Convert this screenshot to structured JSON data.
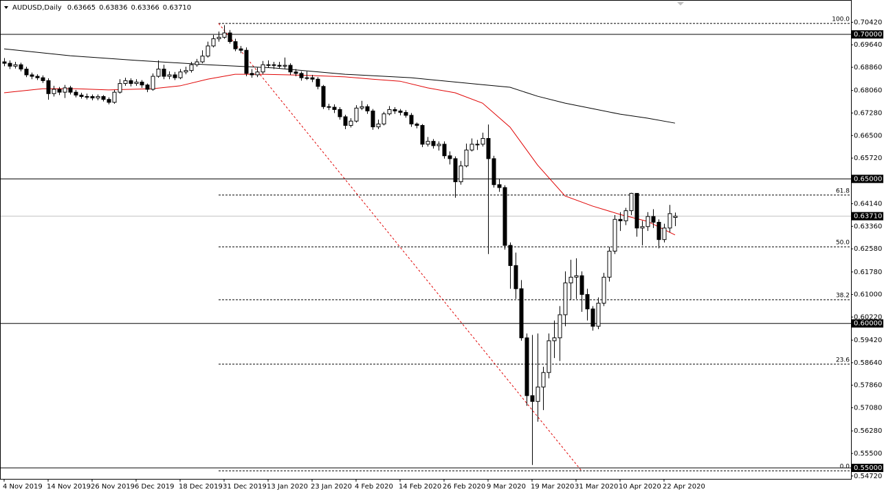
{
  "chart_data": {
    "type": "candlestick",
    "header": {
      "symbol": "AUDUSD,Daily",
      "ohlc": [
        "0.63665",
        "0.63836",
        "0.63366",
        "0.63710"
      ]
    },
    "categories": [
      "4 Nov 2019",
      null,
      null,
      null,
      null,
      null,
      null,
      null,
      "14 Nov 2019",
      null,
      null,
      null,
      null,
      null,
      null,
      null,
      "26 Nov 2019",
      null,
      null,
      null,
      null,
      null,
      null,
      null,
      "6 Dec 2019",
      null,
      null,
      null,
      null,
      null,
      null,
      null,
      "18 Dec 2019",
      null,
      null,
      null,
      null,
      null,
      null,
      null,
      "31 Dec 2019",
      null,
      null,
      null,
      null,
      null,
      null,
      null,
      "13 Jan 2020",
      null,
      null,
      null,
      null,
      null,
      null,
      null,
      "23 Jan 2020",
      null,
      null,
      null,
      null,
      null,
      null,
      null,
      "4 Feb 2020",
      null,
      null,
      null,
      null,
      null,
      null,
      null,
      "14 Feb 2020",
      null,
      null,
      null,
      null,
      null,
      null,
      null,
      "26 Feb 2020",
      null,
      null,
      null,
      null,
      null,
      null,
      null,
      "9 Mar 2020",
      null,
      null,
      null,
      null,
      null,
      null,
      null,
      "19 Mar 2020",
      null,
      null,
      null,
      null,
      null,
      null,
      null,
      "31 Mar 2020",
      null,
      null,
      null,
      null,
      null,
      null,
      null,
      "10 Apr 2020",
      null,
      null,
      null,
      null,
      null,
      null,
      null,
      "22 Apr 2020",
      null,
      null
    ],
    "open": [
      0.6905,
      0.69,
      0.689,
      0.6895,
      0.688,
      0.686,
      0.6855,
      0.685,
      0.684,
      0.6795,
      0.681,
      0.68,
      0.6815,
      0.68,
      0.679,
      0.6785,
      0.6785,
      0.678,
      0.6785,
      0.6775,
      0.6765,
      0.68,
      0.683,
      0.684,
      0.683,
      0.6835,
      0.6825,
      0.681,
      0.6855,
      0.688,
      0.6855,
      0.686,
      0.685,
      0.687,
      0.6875,
      0.6895,
      0.6905,
      0.6925,
      0.696,
      0.6985,
      0.699,
      0.7005,
      0.6975,
      0.695,
      0.6945,
      0.6865,
      0.686,
      0.687,
      0.6895,
      0.6895,
      0.6893,
      0.689,
      0.6893,
      0.687,
      0.6865,
      0.685,
      0.685,
      0.6845,
      0.682,
      0.675,
      0.6748,
      0.674,
      0.6715,
      0.6685,
      0.67,
      0.6745,
      0.675,
      0.6735,
      0.668,
      0.669,
      0.6725,
      0.674,
      0.6735,
      0.673,
      0.672,
      0.669,
      0.6685,
      0.662,
      0.663,
      0.6615,
      0.662,
      0.658,
      0.657,
      0.649,
      0.6545,
      0.66,
      0.662,
      0.662,
      0.664,
      0.657,
      0.648,
      0.647,
      0.627,
      0.62,
      0.612,
      0.595,
      0.575,
      0.573,
      0.578,
      0.583,
      0.594,
      0.595,
      0.603,
      0.614,
      0.616,
      0.6165,
      0.61,
      0.605,
      0.599,
      0.607,
      0.616,
      0.625,
      0.636,
      0.6355,
      0.639,
      0.645,
      0.633,
      0.6335,
      0.637,
      0.635,
      0.629,
      0.633,
      0.63665
    ],
    "high": [
      0.6918,
      0.691,
      0.6905,
      0.6902,
      0.6888,
      0.6868,
      0.6862,
      0.6858,
      0.6848,
      0.6822,
      0.6818,
      0.6825,
      0.6822,
      0.6808,
      0.6798,
      0.6795,
      0.6792,
      0.6792,
      0.679,
      0.6782,
      0.6808,
      0.6845,
      0.685,
      0.6848,
      0.6845,
      0.6842,
      0.683,
      0.6865,
      0.691,
      0.6895,
      0.6872,
      0.687,
      0.688,
      0.6888,
      0.6905,
      0.6915,
      0.6945,
      0.6975,
      0.6998,
      0.701,
      0.7032,
      0.7015,
      0.6985,
      0.696,
      0.6955,
      0.688,
      0.6885,
      0.6908,
      0.691,
      0.6905,
      0.6905,
      0.692,
      0.69,
      0.688,
      0.6872,
      0.6872,
      0.686,
      0.6852,
      0.6825,
      0.676,
      0.6758,
      0.6748,
      0.6722,
      0.671,
      0.6755,
      0.677,
      0.6758,
      0.6742,
      0.6705,
      0.6732,
      0.6752,
      0.6748,
      0.6742,
      0.6738,
      0.6728,
      0.6695,
      0.669,
      0.6645,
      0.6638,
      0.663,
      0.663,
      0.6595,
      0.6578,
      0.6562,
      0.6622,
      0.664,
      0.6635,
      0.666,
      0.6688,
      0.658,
      0.65,
      0.6478,
      0.628,
      0.6245,
      0.615,
      0.5965,
      0.596,
      0.5965,
      0.585,
      0.5965,
      0.601,
      0.606,
      0.618,
      0.622,
      0.6225,
      0.618,
      0.612,
      0.606,
      0.609,
      0.6175,
      0.6265,
      0.6375,
      0.6385,
      0.64,
      0.6452,
      0.645,
      0.6355,
      0.6385,
      0.6395,
      0.636,
      0.6345,
      0.641,
      0.63836
    ],
    "low": [
      0.689,
      0.688,
      0.6882,
      0.6872,
      0.6852,
      0.6845,
      0.6842,
      0.6832,
      0.6774,
      0.6785,
      0.679,
      0.678,
      0.6792,
      0.6782,
      0.6778,
      0.6775,
      0.6772,
      0.6772,
      0.6768,
      0.6758,
      0.676,
      0.6795,
      0.6822,
      0.682,
      0.6822,
      0.6815,
      0.68,
      0.6805,
      0.685,
      0.6845,
      0.6845,
      0.6842,
      0.6845,
      0.6862,
      0.6868,
      0.6888,
      0.69,
      0.692,
      0.6955,
      0.6975,
      0.6985,
      0.6968,
      0.6942,
      0.6935,
      0.6855,
      0.685,
      0.6852,
      0.6862,
      0.6885,
      0.688,
      0.6882,
      0.6882,
      0.686,
      0.6855,
      0.684,
      0.6842,
      0.6835,
      0.681,
      0.6742,
      0.6738,
      0.6728,
      0.6705,
      0.6672,
      0.6678,
      0.6695,
      0.6738,
      0.6725,
      0.667,
      0.6672,
      0.6685,
      0.672,
      0.6725,
      0.672,
      0.6712,
      0.668,
      0.6675,
      0.661,
      0.6612,
      0.6605,
      0.6598,
      0.657,
      0.655,
      0.6435,
      0.648,
      0.654,
      0.6595,
      0.66,
      0.6612,
      0.624,
      0.647,
      0.6455,
      0.6255,
      0.612,
      0.6085,
      0.594,
      0.5715,
      0.551,
      0.566,
      0.57,
      0.581,
      0.588,
      0.587,
      0.599,
      0.608,
      0.6085,
      0.604,
      0.601,
      0.5975,
      0.598,
      0.606,
      0.6145,
      0.624,
      0.632,
      0.634,
      0.6375,
      0.63,
      0.627,
      0.632,
      0.633,
      0.626,
      0.628,
      0.6315,
      0.63366
    ],
    "close": [
      0.69,
      0.689,
      0.6895,
      0.688,
      0.686,
      0.6855,
      0.685,
      0.684,
      0.6795,
      0.681,
      0.68,
      0.6815,
      0.68,
      0.679,
      0.6785,
      0.6785,
      0.678,
      0.6785,
      0.6775,
      0.6765,
      0.68,
      0.683,
      0.684,
      0.683,
      0.6835,
      0.6825,
      0.681,
      0.6855,
      0.688,
      0.6855,
      0.686,
      0.685,
      0.687,
      0.6875,
      0.6895,
      0.6905,
      0.6925,
      0.696,
      0.6985,
      0.699,
      0.7005,
      0.6975,
      0.695,
      0.6945,
      0.6865,
      0.686,
      0.687,
      0.6895,
      0.6895,
      0.6893,
      0.689,
      0.6893,
      0.687,
      0.6865,
      0.685,
      0.685,
      0.6845,
      0.682,
      0.675,
      0.6748,
      0.674,
      0.6715,
      0.6685,
      0.67,
      0.6745,
      0.675,
      0.6735,
      0.668,
      0.669,
      0.6725,
      0.674,
      0.6735,
      0.673,
      0.672,
      0.669,
      0.6685,
      0.662,
      0.663,
      0.6615,
      0.662,
      0.658,
      0.657,
      0.649,
      0.6545,
      0.66,
      0.662,
      0.662,
      0.664,
      0.657,
      0.648,
      0.647,
      0.627,
      0.62,
      0.612,
      0.595,
      0.575,
      0.573,
      0.578,
      0.583,
      0.594,
      0.595,
      0.603,
      0.614,
      0.616,
      0.6165,
      0.61,
      0.605,
      0.599,
      0.607,
      0.616,
      0.625,
      0.636,
      0.6355,
      0.639,
      0.645,
      0.633,
      0.6335,
      0.637,
      0.635,
      0.629,
      0.633,
      0.638,
      0.6371
    ],
    "lines": [
      {
        "color": "#e00000",
        "x": [
          0,
          7,
          13,
          19,
          27,
          32,
          37,
          42,
          47,
          52,
          57,
          62,
          67,
          72,
          77,
          82,
          87,
          92,
          97,
          102,
          107,
          112,
          117,
          122
        ],
        "values": [
          0.6798,
          0.6812,
          0.6812,
          0.6808,
          0.6812,
          0.6822,
          0.6845,
          0.6862,
          0.6862,
          0.686,
          0.6857,
          0.6853,
          0.6845,
          0.6838,
          0.6815,
          0.6798,
          0.6762,
          0.6679,
          0.6548,
          0.6441,
          0.6406,
          0.6377,
          0.6353,
          0.6306
        ]
      },
      {
        "color": "#000000",
        "x": [
          0,
          12,
          24,
          37,
          49,
          62,
          74,
          87,
          92,
          97,
          102,
          107,
          112,
          117,
          122
        ],
        "values": [
          0.695,
          0.6926,
          0.691,
          0.6895,
          0.6884,
          0.6862,
          0.685,
          0.6826,
          0.6817,
          0.6786,
          0.6762,
          0.6743,
          0.6724,
          0.671,
          0.6693
        ]
      }
    ],
    "fib": {
      "color": "#e00000",
      "x": [
        39,
        105
      ],
      "levels": [
        {
          "label": "100.0",
          "price": 0.7038
        },
        {
          "label": "61.8",
          "price": 0.6444
        },
        {
          "label": "50.0",
          "price": 0.6265
        },
        {
          "label": "38.2",
          "price": 0.6082
        },
        {
          "label": "23.6",
          "price": 0.5859
        },
        {
          "label": "0.0",
          "price": 0.549
        }
      ]
    },
    "hlines": [
      {
        "value": 0.7,
        "label": "0.70000"
      },
      {
        "value": 0.65,
        "label": "0.65000"
      },
      {
        "value": 0.6,
        "label": "0.60000"
      },
      {
        "value": 0.55,
        "label": "0.55000"
      }
    ],
    "current": {
      "value": 0.6371,
      "label": "0.63710"
    },
    "ylim": [
      0.5462,
      0.7119
    ],
    "yticks": [
      {
        "value": 0.7042,
        "label": "0.70420"
      },
      {
        "value": 0.6964,
        "label": "0.69640"
      },
      {
        "value": 0.6886,
        "label": "0.68860"
      },
      {
        "value": 0.6806,
        "label": "0.68060"
      },
      {
        "value": 0.6728,
        "label": "0.67280"
      },
      {
        "value": 0.665,
        "label": "0.66500"
      },
      {
        "value": 0.6572,
        "label": "0.65720"
      },
      {
        "value": 0.6414,
        "label": "0.64140"
      },
      {
        "value": 0.6336,
        "label": "0.63360"
      },
      {
        "value": 0.6258,
        "label": "0.62580"
      },
      {
        "value": 0.6178,
        "label": "0.61780"
      },
      {
        "value": 0.61,
        "label": "0.61000"
      },
      {
        "value": 0.6022,
        "label": "0.60220"
      },
      {
        "value": 0.5942,
        "label": "0.59420"
      },
      {
        "value": 0.5864,
        "label": "0.58640"
      },
      {
        "value": 0.5786,
        "label": "0.57860"
      },
      {
        "value": 0.5708,
        "label": "0.57080"
      },
      {
        "value": 0.5628,
        "label": "0.56280"
      },
      {
        "value": 0.555,
        "label": "0.55500"
      },
      {
        "value": 0.5472,
        "label": "0.54720"
      }
    ]
  }
}
